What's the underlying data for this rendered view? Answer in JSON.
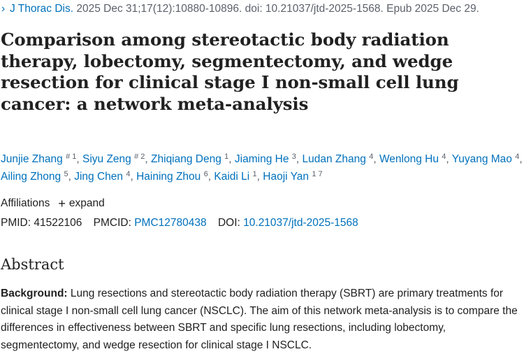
{
  "citation": {
    "chevron": "›",
    "journal": "J Thorac Dis.",
    "details": "2025 Dec 31;17(12):10880-10896. doi: 10.21037/jtd-2025-1568. Epub 2025 Dec 29."
  },
  "title": "Comparison among stereotactic body radiation therapy, lobectomy, segmentectomy, and wedge resection for clinical stage I non-small cell lung cancer: a network meta-analysis",
  "authors": [
    {
      "name": "Junjie Zhang",
      "sup": "# 1"
    },
    {
      "name": "Siyu Zeng",
      "sup": "# 2"
    },
    {
      "name": "Zhiqiang Deng",
      "sup": "1"
    },
    {
      "name": "Jiaming He",
      "sup": "3"
    },
    {
      "name": "Ludan Zhang",
      "sup": "4"
    },
    {
      "name": "Wenlong Hu",
      "sup": "4"
    },
    {
      "name": "Yuyang Mao",
      "sup": "4"
    },
    {
      "name": "Ailing Zhong",
      "sup": "5"
    },
    {
      "name": "Jing Chen",
      "sup": "4"
    },
    {
      "name": "Haining Zhou",
      "sup": "6"
    },
    {
      "name": "Kaidi Li",
      "sup": "1"
    },
    {
      "name": "Haoji Yan",
      "sup": "1 7"
    }
  ],
  "affiliations": {
    "label": "Affiliations",
    "expand_icon": "plus-icon",
    "expand_label": "expand"
  },
  "identifiers": {
    "pmid_label": "PMID:",
    "pmid": "41522106",
    "pmcid_label": "PMCID:",
    "pmcid": "PMC12780438",
    "doi_label": "DOI:",
    "doi": "10.21037/jtd-2025-1568"
  },
  "abstract": {
    "heading": "Abstract",
    "background_label": "Background:",
    "background_text": "Lung resections and stereotactic body radiation therapy (SBRT) are primary treatments for clinical stage I non-small cell lung cancer (NSCLC). The aim of this network meta-analysis is to compare the differences in effectiveness between SBRT and specific lung resections, including lobectomy, segmentectomy, and wedge resection for clinical stage I NSCLC."
  },
  "colors": {
    "link": "#0071bc",
    "text": "#212121",
    "muted": "#5b616b"
  }
}
